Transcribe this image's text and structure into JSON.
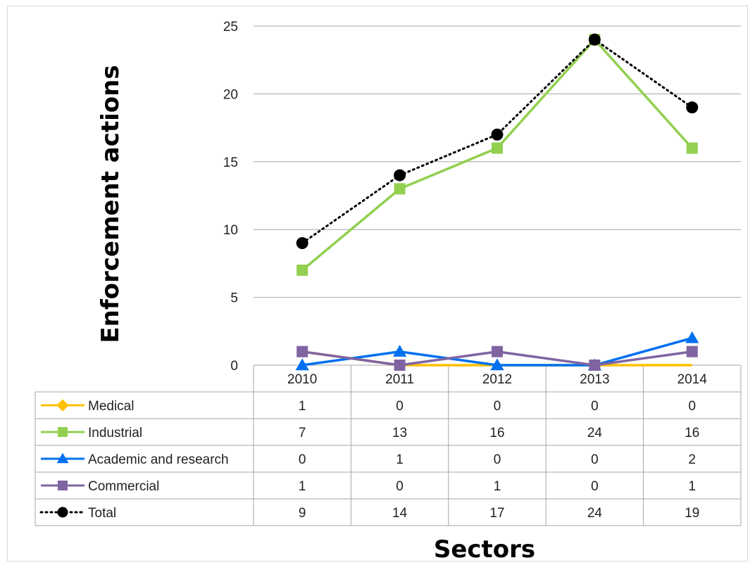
{
  "chart_data": {
    "type": "line",
    "title": "",
    "xlabel": "Sectors",
    "ylabel": "Enforcement actions",
    "categories": [
      "2010",
      "2011",
      "2012",
      "2013",
      "2014"
    ],
    "ylim": [
      0,
      25
    ],
    "yticks": [
      0,
      5,
      10,
      15,
      20,
      25
    ],
    "grid": true,
    "legend": "data-table",
    "series": [
      {
        "name": "Medical",
        "values": [
          1,
          0,
          0,
          0,
          0
        ],
        "color": "#ffc000",
        "marker": "diamond",
        "dash": "solid"
      },
      {
        "name": "Industrial",
        "values": [
          7,
          13,
          16,
          24,
          16
        ],
        "color": "#92d050",
        "marker": "square",
        "dash": "solid"
      },
      {
        "name": "Academic and research",
        "values": [
          0,
          1,
          0,
          0,
          2
        ],
        "color": "#0070f0",
        "marker": "triangle",
        "dash": "solid"
      },
      {
        "name": "Commercial",
        "values": [
          1,
          0,
          1,
          0,
          1
        ],
        "color": "#8064a2",
        "marker": "square",
        "dash": "solid"
      },
      {
        "name": "Total",
        "values": [
          9,
          14,
          17,
          24,
          19
        ],
        "color": "#000000",
        "marker": "circle",
        "dash": "dotted"
      }
    ]
  }
}
